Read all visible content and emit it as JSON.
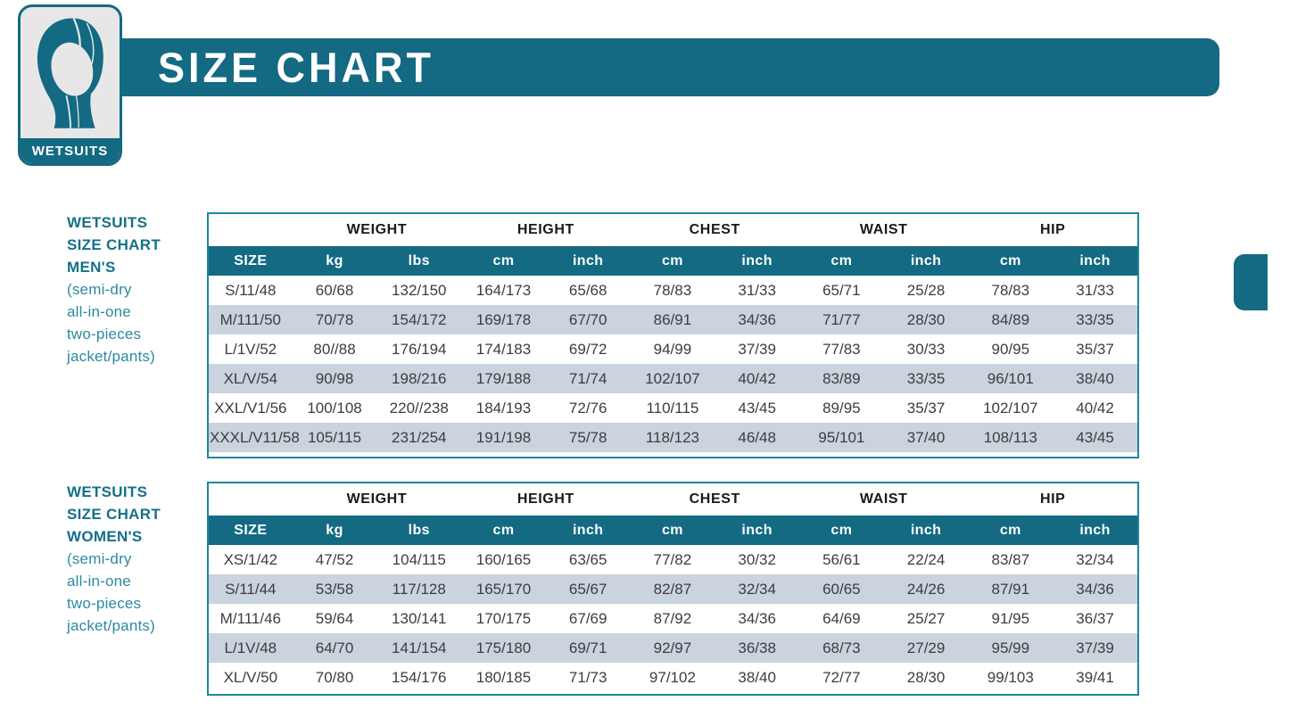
{
  "badge": {
    "label": "WETSUITS",
    "icon": "wetsuit-hood-icon"
  },
  "banner": {
    "title": "SIZE CHART"
  },
  "colors": {
    "teal": "#136a82",
    "table_border": "#1e879b",
    "row_alt": "#cad3de",
    "cell_text": "#3d3d3d",
    "label_bold": "#15708a",
    "label_light": "#2c8aa2"
  },
  "tables": [
    {
      "id": "mens",
      "label_bold": [
        "WETSUITS",
        "SIZE CHART",
        "MEN'S"
      ],
      "label_light": [
        "(semi-dry",
        "all-in-one",
        "two-pieces",
        "jacket/pants)"
      ],
      "group_headers": [
        "WEIGHT",
        "HEIGHT",
        "CHEST",
        "WAIST",
        "HIP"
      ],
      "unit_headers": [
        "SIZE",
        "kg",
        "lbs",
        "cm",
        "inch",
        "cm",
        "inch",
        "cm",
        "inch",
        "cm",
        "inch"
      ],
      "rows": [
        [
          "S/11/48",
          "60/68",
          "132/150",
          "164/173",
          "65/68",
          "78/83",
          "31/33",
          "65/71",
          "25/28",
          "78/83",
          "31/33"
        ],
        [
          "M/111/50",
          "70/78",
          "154/172",
          "169/178",
          "67/70",
          "86/91",
          "34/36",
          "71/77",
          "28/30",
          "84/89",
          "33/35"
        ],
        [
          "L/1V/52",
          "80//88",
          "176/194",
          "174/183",
          "69/72",
          "94/99",
          "37/39",
          "77/83",
          "30/33",
          "90/95",
          "35/37"
        ],
        [
          "XL/V/54",
          "90/98",
          "198/216",
          "179/188",
          "71/74",
          "102/107",
          "40/42",
          "83/89",
          "33/35",
          "96/101",
          "38/40"
        ],
        [
          "XXL/V1/56",
          "100/108",
          "220//238",
          "184/193",
          "72/76",
          "110/115",
          "43/45",
          "89/95",
          "35/37",
          "102/107",
          "40/42"
        ],
        [
          "XXXL/V11/58",
          "105/115",
          "231/254",
          "191/198",
          "75/78",
          "118/123",
          "46/48",
          "95/101",
          "37/40",
          "108/113",
          "43/45"
        ]
      ]
    },
    {
      "id": "womens",
      "label_bold": [
        "WETSUITS",
        "SIZE CHART",
        "WOMEN'S"
      ],
      "label_light": [
        "(semi-dry",
        "all-in-one",
        "two-pieces",
        "jacket/pants)"
      ],
      "group_headers": [
        "WEIGHT",
        "HEIGHT",
        "CHEST",
        "WAIST",
        "HIP"
      ],
      "unit_headers": [
        "SIZE",
        "kg",
        "lbs",
        "cm",
        "inch",
        "cm",
        "inch",
        "cm",
        "inch",
        "cm",
        "inch"
      ],
      "rows": [
        [
          "XS/1/42",
          "47/52",
          "104/115",
          "160/165",
          "63/65",
          "77/82",
          "30/32",
          "56/61",
          "22/24",
          "83/87",
          "32/34"
        ],
        [
          "S/11/44",
          "53/58",
          "117/128",
          "165/170",
          "65/67",
          "82/87",
          "32/34",
          "60/65",
          "24/26",
          "87/91",
          "34/36"
        ],
        [
          "M/111/46",
          "59/64",
          "130/141",
          "170/175",
          "67/69",
          "87/92",
          "34/36",
          "64/69",
          "25/27",
          "91/95",
          "36/37"
        ],
        [
          "L/1V/48",
          "64/70",
          "141/154",
          "175/180",
          "69/71",
          "92/97",
          "36/38",
          "68/73",
          "27/29",
          "95/99",
          "37/39"
        ],
        [
          "XL/V/50",
          "70/80",
          "154/176",
          "180/185",
          "71/73",
          "97/102",
          "38/40",
          "72/77",
          "28/30",
          "99/103",
          "39/41"
        ]
      ]
    }
  ]
}
